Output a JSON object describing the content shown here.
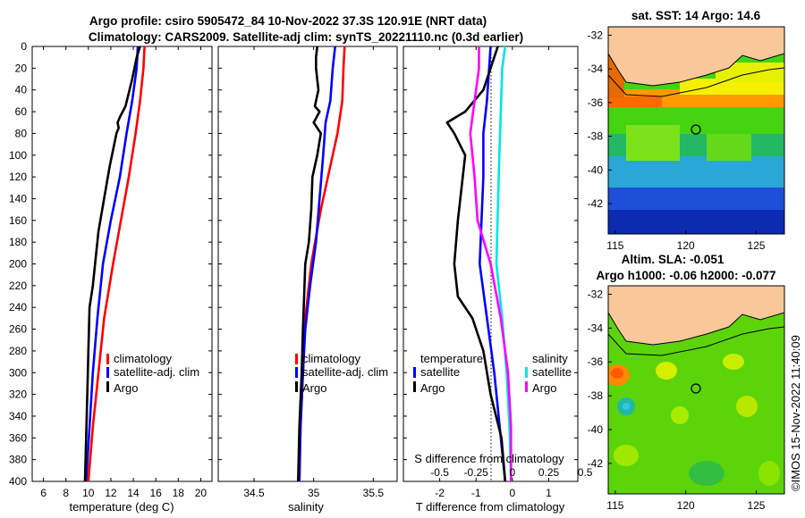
{
  "figure": {
    "title_line1": "Argo profile: csiro 5905472_84 10-Nov-2022 37.3S 120.91E (NRT data)",
    "title_line2": "Climatology: CARS2009. Satellite-adj clim: synTS_20221110.nc (0.3d earlier)",
    "stamp": "©IMOS 15-Nov-2022 11:40:09",
    "colors": {
      "climatology": "#ff0000",
      "satellite": "#0000ff",
      "argo": "#000000",
      "salinity_sat": "#00e5e5",
      "salinity_argo": "#ff00ff",
      "land": "#f8c89a"
    }
  },
  "chart_data": [
    {
      "type": "line",
      "id": "temperature",
      "xlabel": "temperature (deg C)",
      "ylabel": "",
      "xlim": [
        5,
        21
      ],
      "ylim": [
        400,
        0
      ],
      "xticks": [
        6,
        8,
        10,
        12,
        14,
        16,
        18,
        20
      ],
      "yticks": [
        0,
        20,
        40,
        60,
        80,
        100,
        120,
        140,
        160,
        180,
        200,
        220,
        240,
        260,
        280,
        300,
        320,
        340,
        360,
        380,
        400
      ],
      "legend": [
        "climatology",
        "satellite-adj. clim",
        "Argo"
      ],
      "series": [
        {
          "name": "climatology",
          "depth": [
            0,
            20,
            50,
            80,
            120,
            160,
            200,
            250,
            300,
            350,
            400
          ],
          "values": [
            15.0,
            14.9,
            14.6,
            14.2,
            13.6,
            12.9,
            12.2,
            11.4,
            10.9,
            10.4,
            10.0
          ]
        },
        {
          "name": "satellite-adj. clim",
          "depth": [
            0,
            20,
            50,
            80,
            120,
            160,
            200,
            250,
            300,
            350,
            400
          ],
          "values": [
            14.4,
            14.3,
            13.9,
            13.4,
            12.8,
            12.0,
            11.3,
            10.8,
            10.4,
            10.1,
            9.8
          ]
        },
        {
          "name": "Argo",
          "depth": [
            0,
            10,
            30,
            55,
            65,
            70,
            75,
            80,
            90,
            110,
            140,
            170,
            200,
            220,
            240,
            280,
            320,
            360,
            400
          ],
          "values": [
            14.6,
            14.3,
            13.9,
            13.3,
            12.8,
            12.6,
            12.7,
            12.5,
            12.3,
            11.9,
            11.4,
            10.9,
            10.6,
            10.4,
            10.1,
            10.0,
            9.9,
            9.8,
            9.7
          ]
        }
      ]
    },
    {
      "type": "line",
      "id": "salinity",
      "xlabel": "salinity",
      "ylabel": "",
      "xlim": [
        34.2,
        35.7
      ],
      "ylim": [
        400,
        0
      ],
      "xticks": [
        34.5,
        35,
        35.5
      ],
      "tick_labels": [
        "34.5",
        "35",
        "35.5"
      ],
      "legend": [
        "climatology",
        "satellite-adj. clim",
        "Argo"
      ],
      "series": [
        {
          "name": "climatology",
          "depth": [
            0,
            20,
            50,
            80,
            110,
            150,
            200,
            250,
            300,
            350,
            400
          ],
          "values": [
            35.26,
            35.25,
            35.24,
            35.2,
            35.14,
            35.06,
            34.98,
            34.93,
            34.91,
            34.89,
            34.88
          ]
        },
        {
          "name": "satellite-adj. clim",
          "depth": [
            0,
            20,
            50,
            70,
            100,
            140,
            180,
            220,
            260,
            300,
            350,
            400
          ],
          "values": [
            35.18,
            35.16,
            35.14,
            35.1,
            35.08,
            35.05,
            35.02,
            34.97,
            34.93,
            34.91,
            34.89,
            34.88
          ]
        },
        {
          "name": "Argo",
          "depth": [
            0,
            10,
            20,
            40,
            55,
            60,
            70,
            80,
            100,
            120,
            150,
            180,
            200,
            230,
            260,
            300,
            350,
            400
          ],
          "values": [
            35.03,
            35.02,
            35.02,
            35.04,
            35.01,
            35.05,
            35.0,
            35.06,
            35.03,
            34.99,
            34.98,
            34.96,
            34.93,
            34.92,
            34.91,
            34.9,
            34.88,
            34.87
          ]
        }
      ]
    },
    {
      "type": "line",
      "id": "difference",
      "xlabel": "T difference from climatology",
      "xlabel_top": "S difference from climatology",
      "xlim": [
        -3,
        1.8
      ],
      "ylim": [
        400,
        0
      ],
      "xticks": [
        -2,
        -1,
        0,
        1
      ],
      "tick_labels": [
        "-2",
        "-1",
        "0",
        "1"
      ],
      "s_ticks": [
        -0.5,
        -0.25,
        0,
        0.25,
        0.5
      ],
      "s_tick_labels": [
        "-0.5",
        "-0.25",
        "0",
        "0.25",
        "0.5"
      ],
      "legend_temperature_title": "temperature",
      "legend_salinity_title": "salinity",
      "legend": [
        "satellite",
        "Argo",
        "satellite",
        "Argo"
      ],
      "series": [
        {
          "name": "temperature satellite",
          "depth": [
            0,
            50,
            80,
            120,
            200,
            300,
            400
          ],
          "values": [
            -0.6,
            -0.7,
            -0.8,
            -0.8,
            -0.9,
            -0.5,
            -0.2
          ]
        },
        {
          "name": "temperature Argo",
          "depth": [
            0,
            40,
            60,
            70,
            80,
            100,
            130,
            160,
            200,
            230,
            250,
            280,
            320,
            360,
            400
          ],
          "values": [
            -0.4,
            -0.8,
            -1.3,
            -1.8,
            -1.6,
            -1.3,
            -1.4,
            -1.5,
            -1.6,
            -1.5,
            -1.1,
            -0.8,
            -0.6,
            -0.3,
            -0.2
          ]
        },
        {
          "name": "salinity satellite",
          "depth": [
            0,
            20,
            60,
            100,
            150,
            200,
            250,
            300,
            350,
            400
          ],
          "values": [
            -0.05,
            -0.07,
            -0.08,
            -0.09,
            -0.1,
            -0.11,
            -0.07,
            -0.04,
            -0.02,
            -0.01
          ]
        },
        {
          "name": "salinity Argo",
          "depth": [
            0,
            20,
            60,
            80,
            120,
            160,
            200,
            250,
            300,
            350,
            400
          ],
          "values": [
            -0.23,
            -0.23,
            -0.27,
            -0.29,
            -0.26,
            -0.24,
            -0.15,
            -0.08,
            -0.03,
            -0.01,
            -0.01
          ]
        }
      ]
    },
    {
      "type": "heatmap",
      "id": "sst_map",
      "title": "sat. SST: 14 Argo: 14.6",
      "xlim": [
        114.5,
        127
      ],
      "ylim": [
        -43.8,
        -31.5
      ],
      "xticks": [
        115,
        120,
        125
      ],
      "yticks": [
        -32,
        -34,
        -36,
        -38,
        -40,
        -42
      ],
      "argo_position": [
        120.91,
        -37.3
      ]
    },
    {
      "type": "heatmap",
      "id": "sla_map",
      "title_line1": "Altim. SLA: -0.051",
      "title_line2": "Argo h1000: -0.06 h2000: -0.077",
      "xlim": [
        114.5,
        127
      ],
      "ylim": [
        -43.8,
        -31.5
      ],
      "xticks": [
        115,
        120,
        125
      ],
      "yticks": [
        -32,
        -34,
        -36,
        -38,
        -40,
        -42
      ],
      "argo_position": [
        120.91,
        -37.3
      ]
    }
  ]
}
